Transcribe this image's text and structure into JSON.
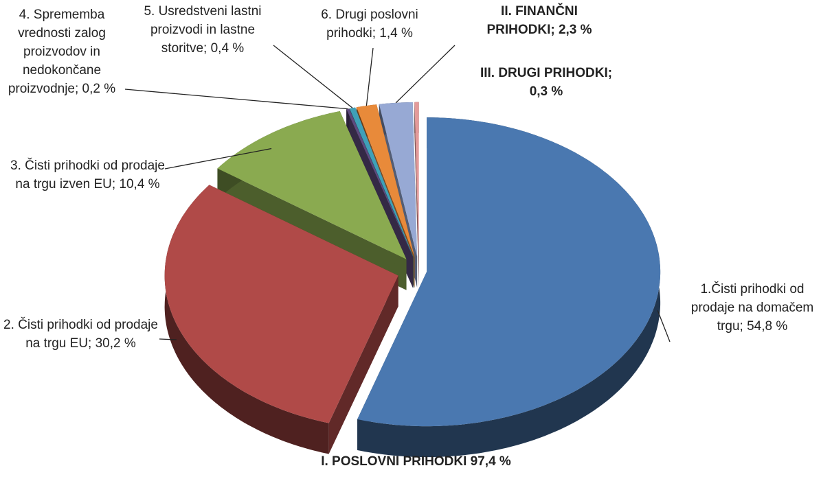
{
  "chart_data": {
    "type": "pie",
    "values": [
      54.8,
      30.2,
      10.4,
      0.2,
      0.4,
      1.4,
      2.3,
      0.3
    ],
    "value_labels": [
      "1.Čisti prihodki od prodaje na domačem trgu; 54,8 %",
      "2. Čisti prihodki od prodaje na trgu EU; 30,2 %",
      "3. Čisti prihodki od prodaje na trgu izven EU; 10,4 %",
      "4. Sprememba vrednosti zalog proizvodov in nedokončane proizvodnje; 0,2 %",
      "5. Usredstveni lastni proizvodi in lastne storitve; 0,4 %",
      "6. Drugi poslovni prihodki; 1,4 %",
      "II. FINANČNI PRIHODKI; 2,3 %",
      "III. DRUGI PRIHODKI; 0,3 %"
    ],
    "colors": [
      "#4a78b0",
      "#b04a48",
      "#8aaa50",
      "#5e4a7e",
      "#3fa0b8",
      "#e88a3a",
      "#97a9d4",
      "#e39a9a"
    ],
    "bold": [
      false,
      false,
      false,
      false,
      false,
      false,
      true,
      true
    ],
    "annotation": "I. POSLOVNI PRIHODKI 97,4 %"
  }
}
